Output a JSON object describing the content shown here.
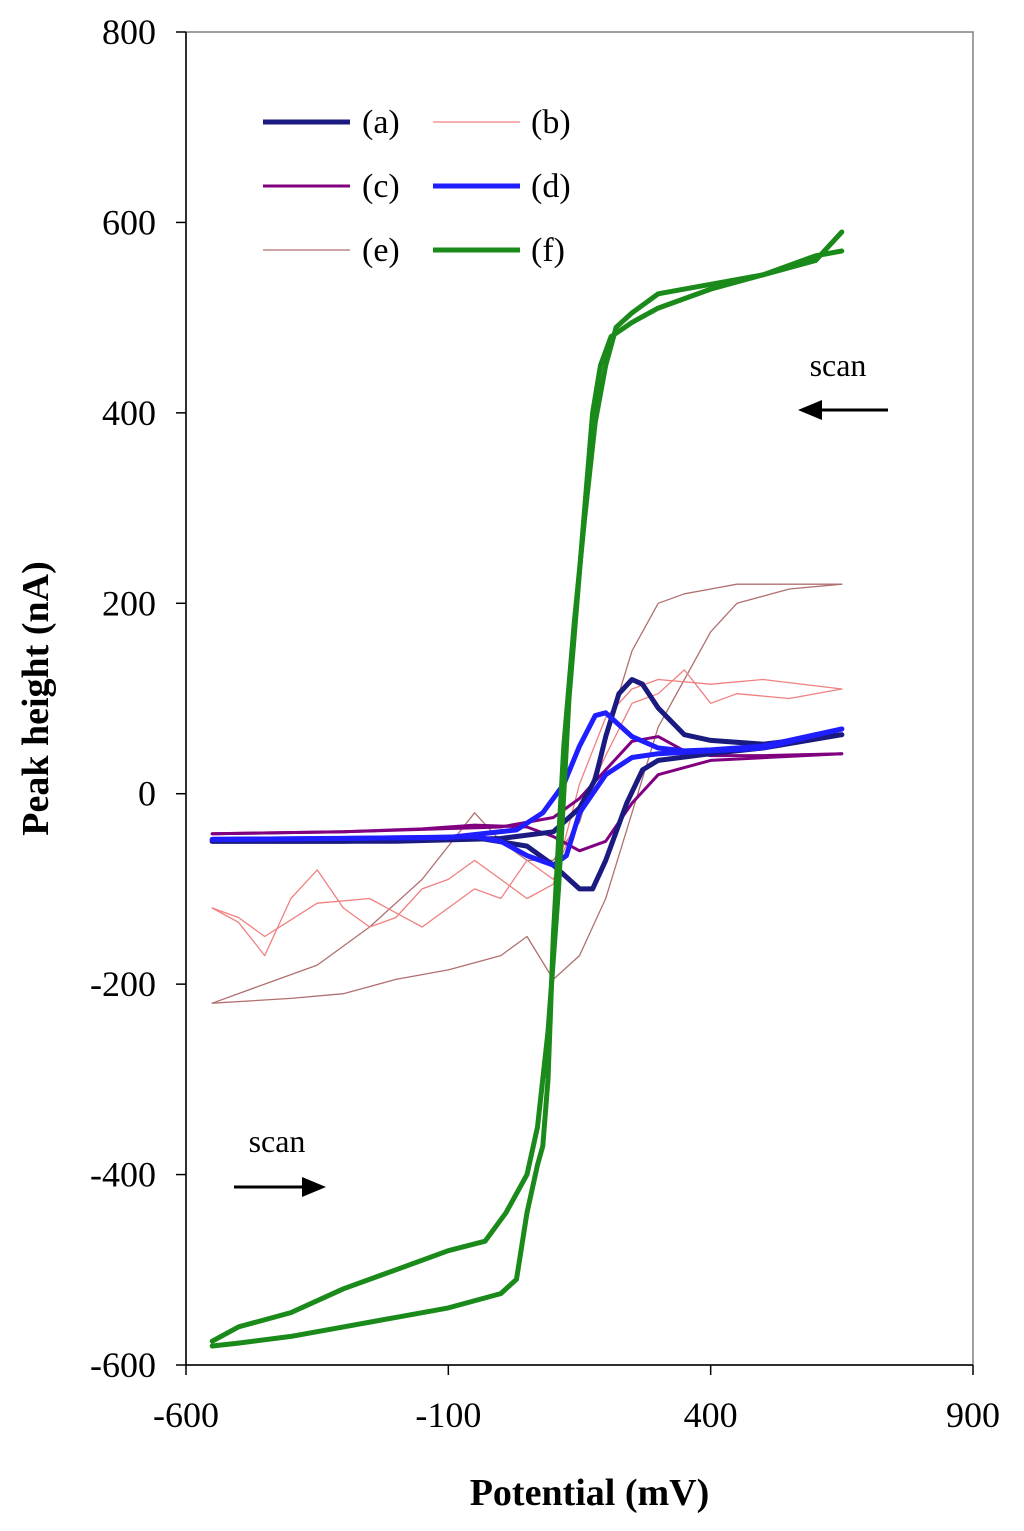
{
  "chart_data": {
    "type": "line",
    "title": "",
    "xlabel": "Potential (mV)",
    "ylabel": "Peak height (nA)",
    "xlim": [
      -600,
      900
    ],
    "ylim": [
      -600,
      800
    ],
    "xticks": [
      -600,
      -100,
      400,
      900
    ],
    "yticks": [
      -600,
      -400,
      -200,
      0,
      200,
      400,
      600,
      800
    ],
    "grid": false,
    "legend_position": "top-left",
    "annotations": [
      {
        "text": "scan",
        "arrow": "left",
        "x": 650,
        "y": 450
      },
      {
        "text": "scan",
        "arrow": "right",
        "x": -430,
        "y": -365
      }
    ],
    "series": [
      {
        "name": "(a)",
        "color": "#1a1a80",
        "style": "thick",
        "forward": [
          [
            -550,
            -50
          ],
          [
            -300,
            -50
          ],
          [
            -150,
            -48
          ],
          [
            -50,
            -46
          ],
          [
            50,
            -55
          ],
          [
            100,
            -75
          ],
          [
            150,
            -100
          ],
          [
            175,
            -100
          ],
          [
            200,
            -70
          ],
          [
            240,
            -10
          ],
          [
            270,
            25
          ],
          [
            300,
            35
          ],
          [
            400,
            42
          ],
          [
            500,
            48
          ],
          [
            650,
            62
          ]
        ],
        "reverse": [
          [
            650,
            62
          ],
          [
            500,
            52
          ],
          [
            400,
            56
          ],
          [
            350,
            62
          ],
          [
            300,
            90
          ],
          [
            270,
            115
          ],
          [
            250,
            120
          ],
          [
            225,
            105
          ],
          [
            200,
            60
          ],
          [
            180,
            15
          ],
          [
            150,
            -15
          ],
          [
            100,
            -40
          ],
          [
            0,
            -47
          ],
          [
            -200,
            -50
          ],
          [
            -550,
            -50
          ]
        ]
      },
      {
        "name": "(b)",
        "color": "#f08080",
        "style": "thin",
        "forward": [
          [
            -550,
            -120
          ],
          [
            -500,
            -135
          ],
          [
            -450,
            -170
          ],
          [
            -400,
            -110
          ],
          [
            -350,
            -80
          ],
          [
            -300,
            -120
          ],
          [
            -250,
            -140
          ],
          [
            -200,
            -130
          ],
          [
            -150,
            -100
          ],
          [
            -100,
            -90
          ],
          [
            -50,
            -70
          ],
          [
            0,
            -90
          ],
          [
            50,
            -110
          ],
          [
            100,
            -95
          ],
          [
            150,
            10
          ],
          [
            200,
            80
          ],
          [
            250,
            110
          ],
          [
            300,
            120
          ],
          [
            400,
            115
          ],
          [
            500,
            120
          ],
          [
            650,
            110
          ]
        ],
        "reverse": [
          [
            650,
            110
          ],
          [
            550,
            100
          ],
          [
            450,
            105
          ],
          [
            400,
            95
          ],
          [
            350,
            130
          ],
          [
            300,
            105
          ],
          [
            250,
            95
          ],
          [
            200,
            40
          ],
          [
            150,
            -20
          ],
          [
            120,
            -60
          ],
          [
            100,
            -90
          ],
          [
            50,
            -70
          ],
          [
            0,
            -110
          ],
          [
            -50,
            -100
          ],
          [
            -150,
            -140
          ],
          [
            -250,
            -110
          ],
          [
            -350,
            -115
          ],
          [
            -450,
            -150
          ],
          [
            -500,
            -130
          ],
          [
            -550,
            -120
          ]
        ]
      },
      {
        "name": "(c)",
        "color": "#800080",
        "style": "medium",
        "forward": [
          [
            -550,
            -42
          ],
          [
            -300,
            -40
          ],
          [
            -150,
            -37
          ],
          [
            -50,
            -33
          ],
          [
            50,
            -35
          ],
          [
            100,
            -45
          ],
          [
            150,
            -60
          ],
          [
            200,
            -50
          ],
          [
            250,
            -10
          ],
          [
            300,
            20
          ],
          [
            400,
            35
          ],
          [
            650,
            42
          ]
        ],
        "reverse": [
          [
            650,
            42
          ],
          [
            500,
            40
          ],
          [
            400,
            40
          ],
          [
            350,
            45
          ],
          [
            300,
            60
          ],
          [
            250,
            55
          ],
          [
            200,
            25
          ],
          [
            150,
            -5
          ],
          [
            100,
            -25
          ],
          [
            0,
            -35
          ],
          [
            -300,
            -40
          ],
          [
            -550,
            -42
          ]
        ]
      },
      {
        "name": "(d)",
        "color": "#1e1eff",
        "style": "thick",
        "forward": [
          [
            -550,
            -48
          ],
          [
            -300,
            -47
          ],
          [
            -150,
            -46
          ],
          [
            -50,
            -45
          ],
          [
            0,
            -50
          ],
          [
            50,
            -65
          ],
          [
            100,
            -75
          ],
          [
            125,
            -65
          ],
          [
            150,
            -20
          ],
          [
            200,
            20
          ],
          [
            250,
            38
          ],
          [
            300,
            42
          ],
          [
            400,
            45
          ],
          [
            500,
            48
          ],
          [
            650,
            68
          ]
        ],
        "reverse": [
          [
            650,
            68
          ],
          [
            500,
            50
          ],
          [
            400,
            46
          ],
          [
            350,
            45
          ],
          [
            300,
            48
          ],
          [
            250,
            60
          ],
          [
            200,
            85
          ],
          [
            180,
            82
          ],
          [
            150,
            50
          ],
          [
            120,
            10
          ],
          [
            80,
            -20
          ],
          [
            30,
            -38
          ],
          [
            -100,
            -46
          ],
          [
            -550,
            -48
          ]
        ]
      },
      {
        "name": "(e)",
        "color": "#b07070",
        "style": "thin",
        "forward": [
          [
            -550,
            -220
          ],
          [
            -400,
            -215
          ],
          [
            -300,
            -210
          ],
          [
            -200,
            -195
          ],
          [
            -100,
            -185
          ],
          [
            0,
            -170
          ],
          [
            50,
            -150
          ],
          [
            100,
            -195
          ],
          [
            150,
            -170
          ],
          [
            200,
            -110
          ],
          [
            250,
            -20
          ],
          [
            300,
            70
          ],
          [
            350,
            120
          ],
          [
            400,
            170
          ],
          [
            450,
            200
          ],
          [
            550,
            215
          ],
          [
            650,
            220
          ]
        ],
        "reverse": [
          [
            650,
            220
          ],
          [
            550,
            220
          ],
          [
            450,
            220
          ],
          [
            400,
            215
          ],
          [
            350,
            210
          ],
          [
            300,
            200
          ],
          [
            250,
            150
          ],
          [
            200,
            60
          ],
          [
            150,
            -30
          ],
          [
            100,
            -70
          ],
          [
            50,
            -70
          ],
          [
            0,
            -50
          ],
          [
            -50,
            -20
          ],
          [
            -150,
            -90
          ],
          [
            -250,
            -140
          ],
          [
            -350,
            -180
          ],
          [
            -450,
            -200
          ],
          [
            -550,
            -220
          ]
        ]
      },
      {
        "name": "(f)",
        "color": "#1a8a1a",
        "style": "thick",
        "forward": [
          [
            -550,
            -575
          ],
          [
            -500,
            -560
          ],
          [
            -400,
            -545
          ],
          [
            -300,
            -520
          ],
          [
            -200,
            -500
          ],
          [
            -100,
            -480
          ],
          [
            -30,
            -470
          ],
          [
            10,
            -440
          ],
          [
            50,
            -400
          ],
          [
            70,
            -350
          ],
          [
            90,
            -250
          ],
          [
            110,
            -100
          ],
          [
            120,
            0
          ],
          [
            130,
            100
          ],
          [
            145,
            200
          ],
          [
            160,
            300
          ],
          [
            175,
            400
          ],
          [
            190,
            450
          ],
          [
            210,
            480
          ],
          [
            250,
            495
          ],
          [
            300,
            510
          ],
          [
            400,
            530
          ],
          [
            500,
            545
          ],
          [
            600,
            560
          ],
          [
            650,
            590
          ]
        ],
        "reverse": [
          [
            650,
            570
          ],
          [
            600,
            565
          ],
          [
            500,
            545
          ],
          [
            400,
            535
          ],
          [
            350,
            530
          ],
          [
            300,
            525
          ],
          [
            250,
            505
          ],
          [
            220,
            490
          ],
          [
            200,
            450
          ],
          [
            180,
            390
          ],
          [
            160,
            290
          ],
          [
            140,
            180
          ],
          [
            120,
            50
          ],
          [
            110,
            -50
          ],
          [
            100,
            -150
          ],
          [
            90,
            -300
          ],
          [
            80,
            -370
          ],
          [
            70,
            -390
          ],
          [
            50,
            -440
          ],
          [
            30,
            -510
          ],
          [
            0,
            -525
          ],
          [
            -100,
            -540
          ],
          [
            -200,
            -550
          ],
          [
            -300,
            -560
          ],
          [
            -400,
            -570
          ],
          [
            -500,
            -577
          ],
          [
            -550,
            -580
          ]
        ]
      }
    ]
  }
}
